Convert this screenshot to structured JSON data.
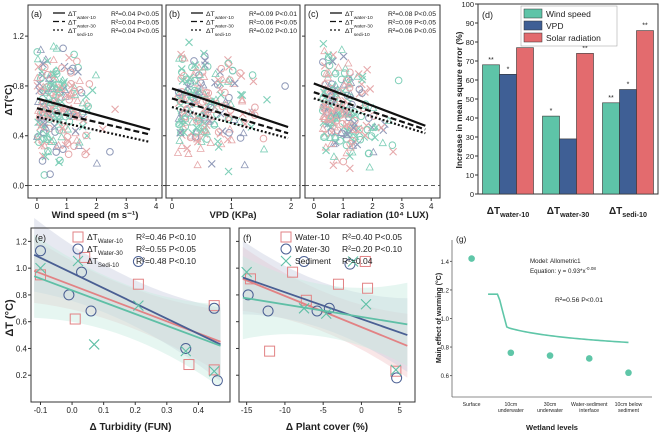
{
  "figure": {
    "shared_ylabel_top": "ΔT(°C)",
    "shared_ylabel_bottom": "ΔT (°C)"
  },
  "chart_data": [
    {
      "id": "a",
      "type": "scatter",
      "panel_label": "(a)",
      "xlabel": "Wind speed (m s⁻¹)",
      "ylabel": "ΔT(°C)",
      "xlim": [
        -0.3,
        4.2
      ],
      "ylim": [
        -0.1,
        1.45
      ],
      "xticks": [
        0,
        1,
        2,
        3,
        4
      ],
      "yticks": [
        0.0,
        0.4,
        0.8,
        1.2
      ],
      "zero_line": true,
      "series": [
        {
          "name": "ΔT",
          "sub": "water-10",
          "stat": "R²=0.04 P<0.05",
          "fit": [
            [
              0,
              0.7
            ],
            [
              3.8,
              0.45
            ]
          ]
        },
        {
          "name": "ΔT",
          "sub": "water-30",
          "stat": "R²=0.04 P<0.05",
          "fit": [
            [
              0,
              0.62
            ],
            [
              3.8,
              0.41
            ]
          ]
        },
        {
          "name": "ΔT",
          "sub": "sedi-10",
          "stat": "R²=0.04 P<0.05",
          "fit": [
            [
              0,
              0.55
            ],
            [
              3.8,
              0.35
            ]
          ]
        }
      ]
    },
    {
      "id": "b",
      "type": "scatter",
      "panel_label": "(b)",
      "xlabel": "VPD (KPa)",
      "xlim": [
        -0.1,
        2.15
      ],
      "ylim": [
        -0.1,
        1.45
      ],
      "xticks": [
        0,
        1,
        2
      ],
      "yticks": [
        0.0,
        0.4,
        0.8,
        1.2
      ],
      "zero_line": true,
      "series": [
        {
          "name": "ΔT",
          "sub": "water-10",
          "stat": "R²=0.09 P<0.01",
          "fit": [
            [
              0,
              0.78
            ],
            [
              1.95,
              0.47
            ]
          ]
        },
        {
          "name": "ΔT",
          "sub": "water-30",
          "stat": "R²=0.06 P<0.05",
          "fit": [
            [
              0,
              0.7
            ],
            [
              1.95,
              0.42
            ]
          ]
        },
        {
          "name": "ΔT",
          "sub": "sedi-10",
          "stat": "R²=0.02 P<0.10",
          "fit": [
            [
              0,
              0.63
            ],
            [
              1.95,
              0.38
            ]
          ]
        }
      ]
    },
    {
      "id": "c",
      "type": "scatter",
      "panel_label": "(c)",
      "xlabel": "Solar radiation (10⁴ LUX)",
      "xlim": [
        -0.3,
        4.3
      ],
      "ylim": [
        -0.1,
        1.45
      ],
      "xticks": [
        0,
        1,
        2,
        3,
        4
      ],
      "yticks": [
        0.0,
        0.4,
        0.8,
        1.2
      ],
      "zero_line": true,
      "series": [
        {
          "name": "ΔT",
          "sub": "water-10",
          "stat": "R²=0.08 P<0.05",
          "fit": [
            [
              0,
              0.82
            ],
            [
              3.8,
              0.48
            ]
          ]
        },
        {
          "name": "ΔT",
          "sub": "water-30",
          "stat": "R²=0.09 P<0.05",
          "fit": [
            [
              0,
              0.75
            ],
            [
              3.8,
              0.45
            ]
          ]
        },
        {
          "name": "ΔT",
          "sub": "sedi-10",
          "stat": "R²=0.06 P<0.05",
          "fit": [
            [
              0,
              0.7
            ],
            [
              3.8,
              0.42
            ]
          ]
        }
      ]
    },
    {
      "id": "d",
      "type": "bar",
      "panel_label": "(d)",
      "ylabel": "Increase in mean square error (%)",
      "ylim": [
        0,
        100
      ],
      "yticks": [
        0,
        10,
        20,
        30,
        40,
        50,
        60,
        70,
        80,
        90,
        100
      ],
      "groups": [
        {
          "name": "ΔT",
          "sub": "water-10"
        },
        {
          "name": "ΔT",
          "sub": "water-30"
        },
        {
          "name": "ΔT",
          "sub": "sedi-10"
        }
      ],
      "series": [
        {
          "name": "Wind speed",
          "color": "#5ec4a8",
          "values": [
            68,
            41,
            48
          ],
          "sig": [
            "**",
            "*",
            "**"
          ]
        },
        {
          "name": "VPD",
          "color": "#3f5f95",
          "values": [
            63,
            29,
            55
          ],
          "sig": [
            "*",
            "",
            "*"
          ]
        },
        {
          "name": "Solar radiation",
          "color": "#e36b6e",
          "values": [
            77,
            74,
            86
          ],
          "sig": [
            "**",
            "**",
            "**"
          ]
        }
      ]
    },
    {
      "id": "e",
      "type": "scatter",
      "panel_label": "(e)",
      "xlabel": "Δ Turbidity (FUN)",
      "ylabel": "ΔT (°C)",
      "xlim": [
        -0.13,
        0.5
      ],
      "ylim": [
        0.0,
        1.3
      ],
      "xticks": [
        -0.1,
        0.0,
        0.1,
        0.2,
        0.3,
        0.4
      ],
      "yticks": [
        0.2,
        0.4,
        0.6,
        0.8,
        1.0,
        1.2
      ],
      "series": [
        {
          "name": "ΔT",
          "sub": "Water-10",
          "stat": "R²=0.46 P<0.10",
          "marker": "square",
          "color": "#e28284",
          "points": [
            [
              -0.1,
              0.95
            ],
            [
              0.01,
              0.62
            ],
            [
              0.04,
              1.08
            ],
            [
              0.21,
              0.88
            ],
            [
              0.37,
              0.28
            ],
            [
              0.45,
              0.72
            ],
            [
              0.45,
              0.24
            ]
          ],
          "fit": [
            [
              -0.12,
              0.98
            ],
            [
              0.47,
              0.45
            ]
          ]
        },
        {
          "name": "ΔT",
          "sub": "Water-30",
          "stat": "R²=0.55 P<0.05",
          "marker": "circle",
          "color": "#4a5f93",
          "points": [
            [
              -0.1,
              1.13
            ],
            [
              -0.01,
              0.8
            ],
            [
              0.03,
              0.97
            ],
            [
              0.06,
              0.68
            ],
            [
              0.21,
              1.05
            ],
            [
              0.36,
              0.4
            ],
            [
              0.45,
              0.7
            ],
            [
              0.46,
              0.16
            ]
          ],
          "fit": [
            [
              -0.12,
              1.1
            ],
            [
              0.47,
              0.43
            ]
          ]
        },
        {
          "name": "ΔT",
          "sub": "Sedi-10",
          "stat": "R²=0.48 P<0.10",
          "marker": "x",
          "color": "#5fbfa6",
          "points": [
            [
              -0.1,
              1.0
            ],
            [
              0.07,
              0.43
            ],
            [
              0.21,
              0.72
            ],
            [
              0.36,
              0.38
            ],
            [
              0.45,
              0.23
            ]
          ],
          "fit": [
            [
              -0.12,
              0.94
            ],
            [
              0.47,
              0.42
            ]
          ]
        }
      ]
    },
    {
      "id": "f",
      "type": "scatter",
      "panel_label": "(f)",
      "xlabel": "Δ Plant cover (%)",
      "xlim": [
        -16,
        7
      ],
      "ylim": [
        0.0,
        1.3
      ],
      "xticks": [
        -15,
        -10,
        -5,
        0,
        5
      ],
      "yticks": [
        0.2,
        0.4,
        0.6,
        0.8,
        1.0,
        1.2
      ],
      "series": [
        {
          "name": "Water-10",
          "stat": "R²=0.40 P<0.05",
          "marker": "square",
          "color": "#e28284",
          "points": [
            [
              -14.5,
              0.92
            ],
            [
              -12,
              0.38
            ],
            [
              -9,
              0.97
            ],
            [
              -7.2,
              0.76
            ],
            [
              -3,
              0.88
            ],
            [
              0.5,
              1.05
            ],
            [
              0.8,
              0.85
            ],
            [
              4.5,
              0.23
            ]
          ],
          "fit": [
            [
              -15.5,
              0.92
            ],
            [
              6,
              0.42
            ]
          ]
        },
        {
          "name": "Water-30",
          "stat": "R²=0.20 P<0.10",
          "marker": "circle",
          "color": "#4a5f93",
          "points": [
            [
              -14.8,
              0.8
            ],
            [
              -12.2,
              0.68
            ],
            [
              -7.5,
              1.05
            ],
            [
              -5.8,
              0.68
            ],
            [
              -4.2,
              0.7
            ],
            [
              -1.5,
              1.03
            ],
            [
              4.6,
              0.18
            ]
          ],
          "fit": [
            [
              -15.5,
              0.93
            ],
            [
              6,
              0.5
            ]
          ]
        },
        {
          "name": "Sediment",
          "stat": "R²=0.04",
          "marker": "x",
          "color": "#5fbfa6",
          "points": [
            [
              -15,
              0.97
            ],
            [
              -7.5,
              0.7
            ],
            [
              -4.6,
              0.66
            ],
            [
              -1.1,
              1.05
            ],
            [
              0.6,
              0.73
            ],
            [
              4.5,
              0.24
            ]
          ],
          "fit": [
            [
              -15.5,
              0.78
            ],
            [
              6,
              0.58
            ]
          ]
        }
      ]
    },
    {
      "id": "g",
      "type": "scatter",
      "panel_label": "(g)",
      "xlabel": "Wetland levels",
      "ylabel": "Main effect of warming (°C)",
      "ylim": [
        0.45,
        1.55
      ],
      "yticks": [
        0.6,
        0.8,
        1.0,
        1.2,
        1.4
      ],
      "categories": [
        "Surface",
        "10cm underwater",
        "30cm underwater",
        "Water-sediment interface",
        "10cm below sediment"
      ],
      "values": [
        1.42,
        0.76,
        0.74,
        0.72,
        0.62
      ],
      "model_text": "Model: Allometric1",
      "equation_text": "Equation: y = 0.93*x^-0.08",
      "stat": "R²=0.56 P<0.01",
      "fit_curve": {
        "a": 0.93,
        "b": -0.08,
        "x_from": 0.42,
        "x_to": 4.0
      }
    }
  ]
}
